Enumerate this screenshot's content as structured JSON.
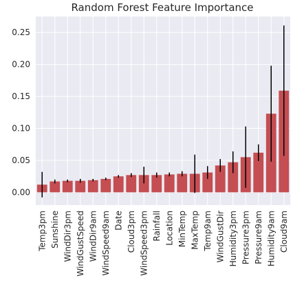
{
  "chart_data": {
    "type": "bar",
    "title": "Random Forest Feature Importance",
    "xlabel": "",
    "ylabel": "",
    "categories": [
      "Temp3pm",
      "Sunshine",
      "WindDir3pm",
      "WindGustSpeed",
      "WindDir9am",
      "WindSpeed9am",
      "Date",
      "Cloud3pm",
      "WindSpeed3pm",
      "Rainfall",
      "Location",
      "MinTemp",
      "MaxTemp",
      "Temp9am",
      "WindGustDir",
      "Humidity3pm",
      "Pressure3pm",
      "Pressure9am",
      "Humidity9am",
      "Cloud9am"
    ],
    "values": [
      0.012,
      0.017,
      0.018,
      0.018,
      0.019,
      0.021,
      0.025,
      0.027,
      0.027,
      0.027,
      0.028,
      0.029,
      0.029,
      0.031,
      0.042,
      0.047,
      0.055,
      0.062,
      0.123,
      0.159
    ],
    "errors": [
      0.02,
      0.003,
      0.002,
      0.003,
      0.002,
      0.002,
      0.002,
      0.003,
      0.013,
      0.004,
      0.003,
      0.004,
      0.03,
      0.01,
      0.01,
      0.017,
      0.048,
      0.013,
      0.075,
      0.102
    ],
    "ylim": [
      -0.02,
      0.275
    ],
    "yticks": [
      "0.00",
      "0.05",
      "0.10",
      "0.15",
      "0.20",
      "0.25"
    ],
    "grid": true,
    "colors": {
      "bar": "#c44e52",
      "error": "#000000",
      "background": "#eaeaf2",
      "grid": "#ffffff"
    }
  }
}
